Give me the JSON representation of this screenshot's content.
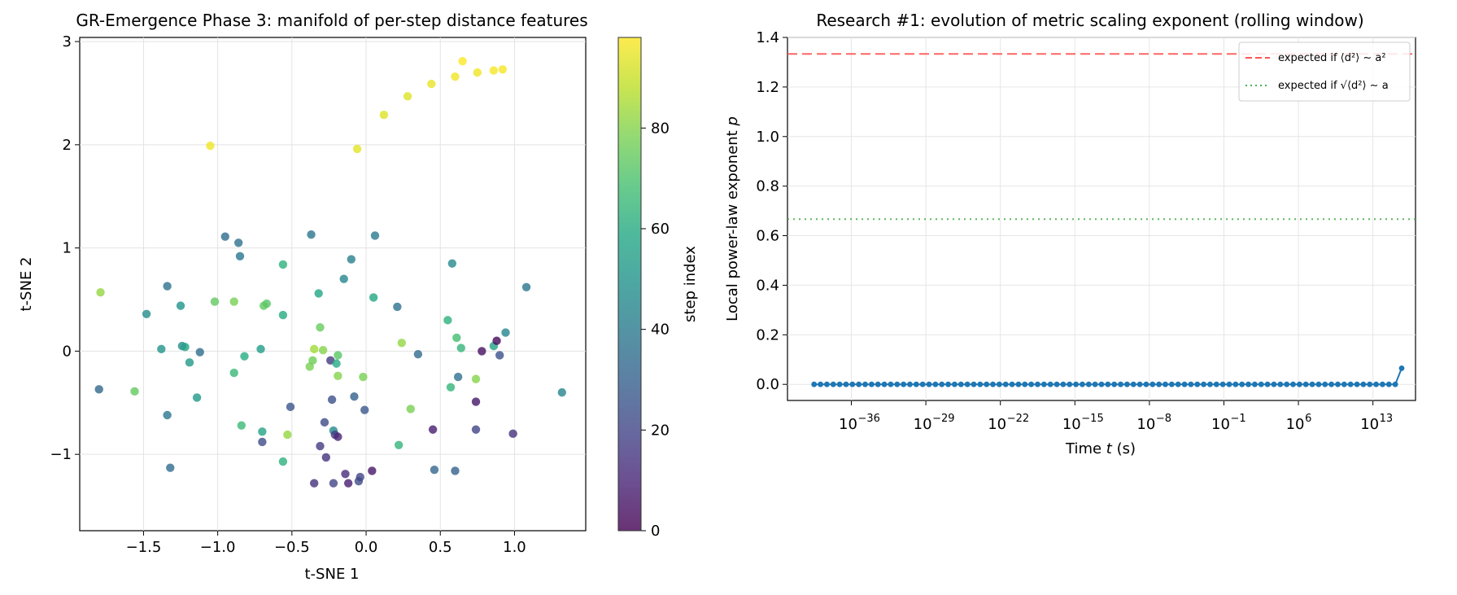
{
  "chart_data": [
    {
      "type": "scatter",
      "title": "GR-Emergence Phase 3: manifold of per-step distance features",
      "xlabel": "t-SNE 1",
      "ylabel": "t-SNE 2",
      "xlim": [
        -1.93,
        1.48
      ],
      "ylim": [
        -1.74,
        3.04
      ],
      "xticks": [
        -1.5,
        -1.0,
        -0.5,
        0.0,
        0.5,
        1.0
      ],
      "xtick_labels": [
        "−1.5",
        "−1.0",
        "−0.5",
        "0.0",
        "0.5",
        "1.0"
      ],
      "yticks": [
        -1,
        0,
        1,
        2,
        3
      ],
      "ytick_labels": [
        "−1",
        "0",
        "1",
        "2",
        "3"
      ],
      "grid": true,
      "colormap": "viridis",
      "colorbar": {
        "label": "step index",
        "range": [
          0,
          98
        ],
        "ticks": [
          0,
          20,
          40,
          60,
          80
        ],
        "tick_labels": [
          "0",
          "20",
          "40",
          "60",
          "80"
        ]
      },
      "points": [
        {
          "x": -1.79,
          "y": 0.57,
          "step": 82
        },
        {
          "x": -1.8,
          "y": -0.37,
          "step": 33
        },
        {
          "x": -1.56,
          "y": -0.39,
          "step": 74
        },
        {
          "x": -1.48,
          "y": 0.36,
          "step": 47
        },
        {
          "x": -1.38,
          "y": 0.02,
          "step": 50
        },
        {
          "x": -1.34,
          "y": 0.63,
          "step": 36
        },
        {
          "x": -1.34,
          "y": -0.62,
          "step": 39
        },
        {
          "x": -1.32,
          "y": -1.13,
          "step": 35
        },
        {
          "x": -1.25,
          "y": 0.44,
          "step": 50
        },
        {
          "x": -1.24,
          "y": 0.05,
          "step": 46
        },
        {
          "x": -1.22,
          "y": 0.04,
          "step": 56
        },
        {
          "x": -1.19,
          "y": -0.11,
          "step": 52
        },
        {
          "x": -1.14,
          "y": -0.45,
          "step": 52
        },
        {
          "x": -1.12,
          "y": -0.01,
          "step": 35
        },
        {
          "x": -1.05,
          "y": 1.99,
          "step": 96
        },
        {
          "x": -1.02,
          "y": 0.48,
          "step": 74
        },
        {
          "x": -0.95,
          "y": 1.11,
          "step": 34
        },
        {
          "x": -0.89,
          "y": 0.48,
          "step": 78
        },
        {
          "x": -0.89,
          "y": -0.21,
          "step": 65
        },
        {
          "x": -0.86,
          "y": 1.05,
          "step": 36
        },
        {
          "x": -0.85,
          "y": 0.92,
          "step": 38
        },
        {
          "x": -0.84,
          "y": -0.72,
          "step": 66
        },
        {
          "x": -0.82,
          "y": -0.05,
          "step": 60
        },
        {
          "x": -0.71,
          "y": 0.02,
          "step": 54
        },
        {
          "x": -0.7,
          "y": -0.78,
          "step": 57
        },
        {
          "x": -0.7,
          "y": -0.88,
          "step": 22
        },
        {
          "x": -0.69,
          "y": 0.44,
          "step": 74
        },
        {
          "x": -0.67,
          "y": 0.46,
          "step": 72
        },
        {
          "x": -0.56,
          "y": 0.84,
          "step": 62
        },
        {
          "x": -0.56,
          "y": 0.35,
          "step": 60
        },
        {
          "x": -0.56,
          "y": -1.07,
          "step": 62
        },
        {
          "x": -0.53,
          "y": -0.81,
          "step": 82
        },
        {
          "x": -0.51,
          "y": -0.54,
          "step": 26
        },
        {
          "x": -0.38,
          "y": -0.15,
          "step": 78
        },
        {
          "x": -0.37,
          "y": 1.13,
          "step": 38
        },
        {
          "x": -0.36,
          "y": -0.09,
          "step": 76
        },
        {
          "x": -0.35,
          "y": 0.02,
          "step": 84
        },
        {
          "x": -0.35,
          "y": -1.28,
          "step": 14
        },
        {
          "x": -0.32,
          "y": 0.56,
          "step": 58
        },
        {
          "x": -0.31,
          "y": 0.23,
          "step": 75
        },
        {
          "x": -0.31,
          "y": -0.92,
          "step": 17
        },
        {
          "x": -0.29,
          "y": 0.01,
          "step": 80
        },
        {
          "x": -0.28,
          "y": -0.69,
          "step": 22
        },
        {
          "x": -0.27,
          "y": -1.03,
          "step": 14
        },
        {
          "x": -0.24,
          "y": -0.09,
          "step": 16
        },
        {
          "x": -0.23,
          "y": -0.47,
          "step": 24
        },
        {
          "x": -0.22,
          "y": -0.77,
          "step": 46
        },
        {
          "x": -0.22,
          "y": -1.28,
          "step": 20
        },
        {
          "x": -0.21,
          "y": -0.81,
          "step": 18
        },
        {
          "x": -0.2,
          "y": -0.12,
          "step": 60
        },
        {
          "x": -0.19,
          "y": -0.24,
          "step": 80
        },
        {
          "x": -0.19,
          "y": -0.04,
          "step": 72
        },
        {
          "x": -0.19,
          "y": -0.83,
          "step": 10
        },
        {
          "x": -0.15,
          "y": 0.7,
          "step": 44
        },
        {
          "x": -0.14,
          "y": -1.19,
          "step": 12
        },
        {
          "x": -0.12,
          "y": -1.28,
          "step": 8
        },
        {
          "x": -0.1,
          "y": 0.89,
          "step": 42
        },
        {
          "x": -0.08,
          "y": -0.44,
          "step": 30
        },
        {
          "x": -0.06,
          "y": 1.96,
          "step": 94
        },
        {
          "x": -0.05,
          "y": -1.26,
          "step": 22
        },
        {
          "x": -0.04,
          "y": -1.22,
          "step": 20
        },
        {
          "x": -0.02,
          "y": -0.25,
          "step": 78
        },
        {
          "x": -0.01,
          "y": -0.57,
          "step": 26
        },
        {
          "x": 0.04,
          "y": -1.16,
          "step": 6
        },
        {
          "x": 0.05,
          "y": 0.52,
          "step": 58
        },
        {
          "x": 0.06,
          "y": 1.12,
          "step": 40
        },
        {
          "x": 0.12,
          "y": 2.29,
          "step": 93
        },
        {
          "x": 0.21,
          "y": 0.43,
          "step": 37
        },
        {
          "x": 0.22,
          "y": -0.91,
          "step": 64
        },
        {
          "x": 0.24,
          "y": 0.08,
          "step": 82
        },
        {
          "x": 0.28,
          "y": 2.47,
          "step": 93
        },
        {
          "x": 0.3,
          "y": -0.56,
          "step": 78
        },
        {
          "x": 0.35,
          "y": -0.03,
          "step": 34
        },
        {
          "x": 0.44,
          "y": 2.59,
          "step": 95
        },
        {
          "x": 0.45,
          "y": -0.76,
          "step": 8
        },
        {
          "x": 0.46,
          "y": -1.15,
          "step": 32
        },
        {
          "x": 0.55,
          "y": 0.3,
          "step": 62
        },
        {
          "x": 0.57,
          "y": -0.35,
          "step": 64
        },
        {
          "x": 0.58,
          "y": 0.85,
          "step": 46
        },
        {
          "x": 0.6,
          "y": 2.66,
          "step": 96
        },
        {
          "x": 0.6,
          "y": -1.16,
          "step": 30
        },
        {
          "x": 0.61,
          "y": 0.13,
          "step": 68
        },
        {
          "x": 0.62,
          "y": -0.25,
          "step": 36
        },
        {
          "x": 0.64,
          "y": 0.03,
          "step": 64
        },
        {
          "x": 0.65,
          "y": 2.81,
          "step": 98
        },
        {
          "x": 0.74,
          "y": -0.27,
          "step": 80
        },
        {
          "x": 0.74,
          "y": -0.49,
          "step": 6
        },
        {
          "x": 0.74,
          "y": -0.76,
          "step": 20
        },
        {
          "x": 0.75,
          "y": 2.7,
          "step": 96
        },
        {
          "x": 0.78,
          "y": 0.0,
          "step": 4
        },
        {
          "x": 0.86,
          "y": 0.05,
          "step": 56
        },
        {
          "x": 0.86,
          "y": 2.72,
          "step": 97
        },
        {
          "x": 0.88,
          "y": 0.1,
          "step": 2
        },
        {
          "x": 0.9,
          "y": -0.04,
          "step": 24
        },
        {
          "x": 0.92,
          "y": 2.73,
          "step": 97
        },
        {
          "x": 0.94,
          "y": 0.18,
          "step": 44
        },
        {
          "x": 0.99,
          "y": -0.8,
          "step": 14
        },
        {
          "x": 1.08,
          "y": 0.62,
          "step": 38
        },
        {
          "x": 1.32,
          "y": -0.4,
          "step": 44
        }
      ]
    },
    {
      "type": "line",
      "title": "Research #1: evolution of metric scaling exponent (rolling window)",
      "xlabel_prefix": "Time ",
      "xlabel_var": "t",
      "xlabel_suffix": " (s)",
      "ylabel_prefix": "Local power-law exponent ",
      "ylabel_var": "p",
      "xscale": "log",
      "xlim_log10": [
        -42,
        17
      ],
      "ylim": [
        -0.065,
        1.4
      ],
      "xticks_log10": [
        -36,
        -29,
        -22,
        -15,
        -8,
        -1,
        6,
        13
      ],
      "xtick_labels": [
        "10",
        "10",
        "10",
        "10",
        "10",
        "10",
        "10",
        "10"
      ],
      "xtick_exponents": [
        "−36",
        "−29",
        "−22",
        "−15",
        "−8",
        "−1",
        "6",
        "13"
      ],
      "yticks": [
        0.0,
        0.2,
        0.4,
        0.6,
        0.8,
        1.0,
        1.2,
        1.4
      ],
      "ytick_labels": [
        "0.0",
        "0.2",
        "0.4",
        "0.6",
        "0.8",
        "1.0",
        "1.2",
        "1.4"
      ],
      "grid": true,
      "legend_placement": "top-right",
      "reference_lines": [
        {
          "label": "expected if ⟨d²⟩ ∼ a²",
          "y": 1.3333,
          "color": "#ff5555",
          "style": "dashed"
        },
        {
          "label": "expected if √⟨d²⟩ ∼ a",
          "y": 0.6667,
          "color": "#4caf50",
          "style": "dotted"
        }
      ],
      "series": [
        {
          "color": "#1f77b4",
          "log10_t_start": -39.5,
          "log10_t_step": 0.6,
          "count": 93,
          "y": [
            0,
            0,
            0,
            0,
            0,
            0,
            0,
            0,
            0,
            0,
            0,
            0,
            0,
            0,
            0,
            0,
            0,
            0,
            0,
            0,
            0,
            0,
            0,
            0,
            0,
            0,
            0,
            0,
            0,
            0,
            0,
            0,
            0,
            0,
            0,
            0,
            0,
            0,
            0,
            0,
            0,
            0,
            0,
            0,
            0,
            0,
            0,
            0,
            0,
            0,
            0,
            0,
            0,
            0,
            0,
            0,
            0,
            0,
            0,
            0,
            0,
            0,
            0,
            0,
            0,
            0,
            0,
            0,
            0,
            0,
            0,
            0,
            0,
            0,
            0,
            0,
            0,
            0,
            0,
            0,
            0,
            0,
            0,
            0,
            0,
            0,
            0,
            0,
            0,
            0,
            0,
            0,
            0.065
          ]
        }
      ]
    }
  ]
}
